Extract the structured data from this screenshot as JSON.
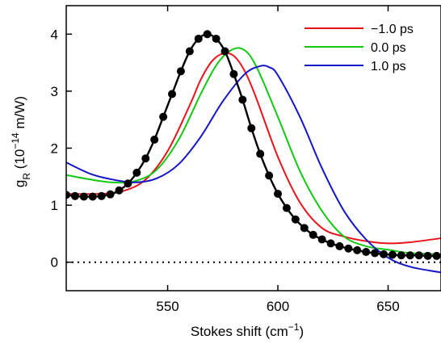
{
  "chart_data": {
    "type": "line",
    "xlabel": {
      "text": "Stokes shift (cm",
      "sup": "−1",
      "close": ")"
    },
    "ylabel": {
      "g": "g",
      "sub": "R",
      "paren": " (10",
      "sup": "−14",
      "unit": " m/W)"
    },
    "xlim": [
      504,
      674
    ],
    "ylim": [
      -0.5,
      4.5
    ],
    "xticks": [
      500,
      550,
      600,
      650
    ],
    "yticks": [
      0,
      1,
      2,
      3,
      4
    ],
    "grid": false,
    "zero_line": {
      "y": 0,
      "style": "dotted"
    },
    "legend": {
      "position": "top-right"
    },
    "series": [
      {
        "name": "−1.0 ps",
        "color": "#e8141a",
        "x": [
          504,
          520,
          530,
          540,
          550,
          560,
          565,
          570,
          575,
          580,
          585,
          590,
          600,
          610,
          620,
          630,
          640,
          650,
          660,
          674
        ],
        "y": [
          1.2,
          1.2,
          1.25,
          1.45,
          1.95,
          2.75,
          3.2,
          3.52,
          3.66,
          3.62,
          3.35,
          2.9,
          1.85,
          1.05,
          0.6,
          0.45,
          0.37,
          0.33,
          0.35,
          0.42
        ]
      },
      {
        "name": "0.0 ps",
        "color": "#12c812",
        "x": [
          504,
          515,
          525,
          535,
          545,
          555,
          565,
          572,
          578,
          584,
          590,
          600,
          610,
          620,
          630,
          640,
          650,
          660,
          674
        ],
        "y": [
          1.53,
          1.45,
          1.4,
          1.42,
          1.62,
          2.15,
          2.95,
          3.45,
          3.7,
          3.74,
          3.45,
          2.55,
          1.6,
          0.9,
          0.45,
          0.28,
          0.22,
          0.16,
          0.14
        ]
      },
      {
        "name": "1.0 ps",
        "color": "#1515c8",
        "x": [
          504,
          515,
          525,
          535,
          545,
          555,
          565,
          575,
          585,
          592,
          596,
          600,
          610,
          620,
          630,
          640,
          650,
          660,
          674
        ],
        "y": [
          1.75,
          1.55,
          1.45,
          1.4,
          1.47,
          1.72,
          2.2,
          2.82,
          3.3,
          3.44,
          3.42,
          3.28,
          2.55,
          1.65,
          0.9,
          0.4,
          0.08,
          -0.08,
          -0.18
        ]
      },
      {
        "name": "",
        "color": "#000000",
        "markers": true,
        "x": [
          504,
          508,
          512,
          516,
          520,
          524,
          528,
          532,
          536,
          540,
          544,
          548,
          552,
          556,
          560,
          564,
          568,
          572,
          576,
          580,
          584,
          588,
          592,
          596,
          600,
          604,
          608,
          612,
          616,
          620,
          624,
          628,
          632,
          636,
          640,
          644,
          648,
          652,
          656,
          660,
          664,
          668,
          672
        ],
        "y": [
          1.18,
          1.16,
          1.15,
          1.15,
          1.16,
          1.19,
          1.26,
          1.38,
          1.57,
          1.82,
          2.15,
          2.55,
          2.95,
          3.35,
          3.7,
          3.92,
          4.0,
          3.92,
          3.7,
          3.3,
          2.85,
          2.35,
          1.9,
          1.52,
          1.2,
          0.95,
          0.75,
          0.6,
          0.48,
          0.4,
          0.33,
          0.28,
          0.24,
          0.21,
          0.18,
          0.16,
          0.14,
          0.13,
          0.12,
          0.12,
          0.12,
          0.11,
          0.11
        ]
      }
    ]
  }
}
